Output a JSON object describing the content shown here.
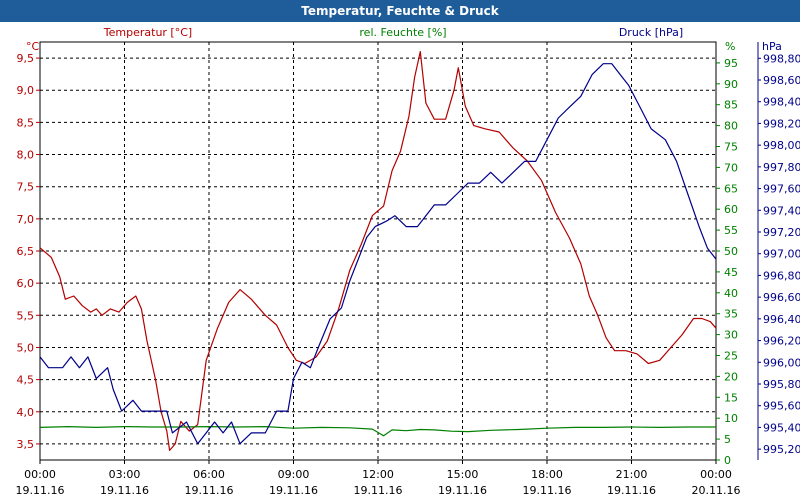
{
  "window": {
    "title": "Temperatur, Feuchte & Druck"
  },
  "chart_data": {
    "type": "line",
    "title": "Temperatur, Feuchte & Druck",
    "colors": {
      "temperature": "#b30000",
      "humidity": "#008000",
      "pressure": "#00008b",
      "grid": "#000000",
      "title_bar": "#1f5c9a"
    },
    "x_axis": {
      "range_hours": [
        0,
        24
      ],
      "ticks": [
        {
          "h": 0,
          "time": "00:00",
          "date": "19.11.16"
        },
        {
          "h": 3,
          "time": "03:00",
          "date": "19.11.16"
        },
        {
          "h": 6,
          "time": "06:00",
          "date": "19.11.16"
        },
        {
          "h": 9,
          "time": "09:00",
          "date": "19.11.16"
        },
        {
          "h": 12,
          "time": "12:00",
          "date": "19.11.16"
        },
        {
          "h": 15,
          "time": "15:00",
          "date": "19.11.16"
        },
        {
          "h": 18,
          "time": "18:00",
          "date": "19.11.16"
        },
        {
          "h": 21,
          "time": "21:00",
          "date": "19.11.16"
        },
        {
          "h": 24,
          "time": "00:00",
          "date": "20.11.16"
        }
      ]
    },
    "axes": {
      "temperature": {
        "unit": "°C",
        "label": "Temperatur [°C]",
        "range": [
          3.25,
          9.75
        ],
        "ticks": [
          "3,5",
          "4,0",
          "4,5",
          "5,0",
          "5,5",
          "6,0",
          "6,5",
          "7,0",
          "7,5",
          "8,0",
          "8,5",
          "9,0",
          "9,5"
        ]
      },
      "humidity": {
        "unit": "%",
        "label": "rel. Feuchte [%]",
        "range": [
          0,
          100
        ],
        "ticks": [
          "0",
          "5",
          "10",
          "15",
          "20",
          "25",
          "30",
          "35",
          "40",
          "45",
          "50",
          "55",
          "60",
          "65",
          "70",
          "75",
          "80",
          "85",
          "90",
          "95"
        ]
      },
      "pressure": {
        "unit": "hPa",
        "label": "Druck [hPa]",
        "range": [
          995.1,
          998.95
        ],
        "ticks": [
          "995,20",
          "995,40",
          "995,60",
          "995,80",
          "996,00",
          "996,20",
          "996,40",
          "996,60",
          "996,80",
          "997,00",
          "997,20",
          "997,40",
          "997,60",
          "997,80",
          "998,00",
          "998,20",
          "998,40",
          "998,60",
          "998,80"
        ]
      }
    },
    "series": [
      {
        "name": "Temperatur [°C]",
        "axis": "temperature",
        "points": [
          [
            0,
            6.55
          ],
          [
            0.4,
            6.4
          ],
          [
            0.7,
            6.1
          ],
          [
            0.9,
            5.75
          ],
          [
            1.2,
            5.8
          ],
          [
            1.5,
            5.65
          ],
          [
            1.8,
            5.55
          ],
          [
            2.0,
            5.6
          ],
          [
            2.2,
            5.5
          ],
          [
            2.5,
            5.6
          ],
          [
            2.8,
            5.55
          ],
          [
            3.1,
            5.7
          ],
          [
            3.4,
            5.8
          ],
          [
            3.6,
            5.6
          ],
          [
            3.8,
            5.1
          ],
          [
            4.1,
            4.5
          ],
          [
            4.3,
            4.0
          ],
          [
            4.5,
            3.7
          ],
          [
            4.6,
            3.4
          ],
          [
            4.8,
            3.5
          ],
          [
            5.0,
            3.85
          ],
          [
            5.3,
            3.7
          ],
          [
            5.6,
            3.8
          ],
          [
            5.9,
            4.8
          ],
          [
            6.3,
            5.3
          ],
          [
            6.7,
            5.7
          ],
          [
            7.1,
            5.9
          ],
          [
            7.5,
            5.75
          ],
          [
            8.0,
            5.5
          ],
          [
            8.4,
            5.35
          ],
          [
            8.8,
            5.0
          ],
          [
            9.1,
            4.8
          ],
          [
            9.4,
            4.75
          ],
          [
            9.8,
            4.85
          ],
          [
            10.2,
            5.1
          ],
          [
            10.6,
            5.6
          ],
          [
            11.0,
            6.2
          ],
          [
            11.4,
            6.6
          ],
          [
            11.8,
            7.05
          ],
          [
            12.2,
            7.2
          ],
          [
            12.5,
            7.75
          ],
          [
            12.8,
            8.05
          ],
          [
            13.1,
            8.6
          ],
          [
            13.3,
            9.2
          ],
          [
            13.5,
            9.6
          ],
          [
            13.7,
            8.8
          ],
          [
            14.0,
            8.55
          ],
          [
            14.4,
            8.55
          ],
          [
            14.7,
            9.0
          ],
          [
            14.85,
            9.35
          ],
          [
            15.1,
            8.75
          ],
          [
            15.4,
            8.45
          ],
          [
            15.8,
            8.4
          ],
          [
            16.3,
            8.35
          ],
          [
            16.8,
            8.1
          ],
          [
            17.3,
            7.9
          ],
          [
            17.8,
            7.6
          ],
          [
            18.3,
            7.1
          ],
          [
            18.8,
            6.7
          ],
          [
            19.2,
            6.3
          ],
          [
            19.5,
            5.8
          ],
          [
            19.8,
            5.5
          ],
          [
            20.1,
            5.15
          ],
          [
            20.4,
            4.95
          ],
          [
            20.8,
            4.95
          ],
          [
            21.2,
            4.9
          ],
          [
            21.6,
            4.75
          ],
          [
            22.0,
            4.8
          ],
          [
            22.4,
            5.0
          ],
          [
            22.8,
            5.2
          ],
          [
            23.2,
            5.45
          ],
          [
            23.5,
            5.45
          ],
          [
            23.8,
            5.4
          ],
          [
            24.0,
            5.3
          ]
        ]
      },
      {
        "name": "rel. Feuchte [%]",
        "axis": "humidity",
        "points": [
          [
            0,
            7.8
          ],
          [
            1,
            8.0
          ],
          [
            2,
            7.8
          ],
          [
            3,
            8.0
          ],
          [
            4,
            7.9
          ],
          [
            5,
            7.9
          ],
          [
            6,
            8.0
          ],
          [
            7,
            7.9
          ],
          [
            8,
            8.0
          ],
          [
            9,
            7.6
          ],
          [
            10,
            7.8
          ],
          [
            11,
            7.7
          ],
          [
            11.8,
            7.4
          ],
          [
            12.2,
            5.8
          ],
          [
            12.5,
            7.2
          ],
          [
            13.0,
            7.0
          ],
          [
            13.5,
            7.3
          ],
          [
            14.0,
            7.2
          ],
          [
            14.6,
            6.9
          ],
          [
            15.2,
            6.8
          ],
          [
            16,
            7.1
          ],
          [
            17,
            7.3
          ],
          [
            18,
            7.6
          ],
          [
            19,
            7.8
          ],
          [
            20,
            7.8
          ],
          [
            21,
            7.9
          ],
          [
            22,
            7.8
          ],
          [
            23,
            7.9
          ],
          [
            24,
            7.9
          ]
        ]
      },
      {
        "name": "Druck [hPa]",
        "axis": "pressure",
        "points": [
          [
            0,
            996.05
          ],
          [
            0.3,
            995.95
          ],
          [
            0.8,
            995.95
          ],
          [
            1.1,
            996.05
          ],
          [
            1.4,
            995.95
          ],
          [
            1.7,
            996.05
          ],
          [
            2.0,
            995.85
          ],
          [
            2.4,
            995.95
          ],
          [
            2.6,
            995.75
          ],
          [
            2.9,
            995.55
          ],
          [
            3.3,
            995.65
          ],
          [
            3.6,
            995.55
          ],
          [
            4.0,
            995.55
          ],
          [
            4.5,
            995.55
          ],
          [
            4.7,
            995.35
          ],
          [
            5.2,
            995.45
          ],
          [
            5.6,
            995.25
          ],
          [
            5.9,
            995.35
          ],
          [
            6.2,
            995.45
          ],
          [
            6.5,
            995.35
          ],
          [
            6.8,
            995.45
          ],
          [
            7.1,
            995.25
          ],
          [
            7.5,
            995.35
          ],
          [
            8.0,
            995.35
          ],
          [
            8.4,
            995.55
          ],
          [
            8.8,
            995.55
          ],
          [
            9.0,
            995.85
          ],
          [
            9.3,
            996.0
          ],
          [
            9.6,
            995.95
          ],
          [
            9.9,
            996.15
          ],
          [
            10.3,
            996.4
          ],
          [
            10.7,
            996.5
          ],
          [
            11.0,
            996.75
          ],
          [
            11.3,
            996.95
          ],
          [
            11.6,
            997.15
          ],
          [
            11.9,
            997.25
          ],
          [
            12.3,
            997.3
          ],
          [
            12.6,
            997.35
          ],
          [
            13.0,
            997.25
          ],
          [
            13.4,
            997.25
          ],
          [
            13.7,
            997.35
          ],
          [
            14.0,
            997.45
          ],
          [
            14.4,
            997.45
          ],
          [
            14.8,
            997.55
          ],
          [
            15.2,
            997.65
          ],
          [
            15.6,
            997.65
          ],
          [
            16.0,
            997.75
          ],
          [
            16.4,
            997.65
          ],
          [
            16.8,
            997.75
          ],
          [
            17.2,
            997.85
          ],
          [
            17.6,
            997.85
          ],
          [
            18.0,
            998.05
          ],
          [
            18.4,
            998.25
          ],
          [
            18.8,
            998.35
          ],
          [
            19.2,
            998.45
          ],
          [
            19.6,
            998.65
          ],
          [
            20.0,
            998.75
          ],
          [
            20.3,
            998.75
          ],
          [
            20.6,
            998.65
          ],
          [
            20.9,
            998.55
          ],
          [
            21.3,
            998.35
          ],
          [
            21.7,
            998.15
          ],
          [
            22.2,
            998.05
          ],
          [
            22.6,
            997.85
          ],
          [
            23.0,
            997.55
          ],
          [
            23.4,
            997.25
          ],
          [
            23.7,
            997.05
          ],
          [
            24.0,
            996.95
          ]
        ]
      }
    ]
  }
}
